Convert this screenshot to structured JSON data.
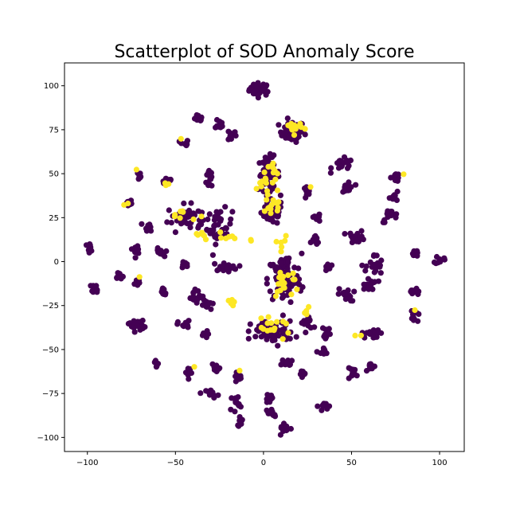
{
  "chart_data": {
    "type": "scatter",
    "title": "Scatterplot of SOD Anomaly Score",
    "xlabel": "",
    "ylabel": "",
    "xlim": [
      -113,
      114
    ],
    "ylim": [
      -108,
      113
    ],
    "xticks": [
      -100,
      -50,
      0,
      50,
      100
    ],
    "yticks": [
      -100,
      -75,
      -50,
      -25,
      0,
      25,
      50,
      75,
      100
    ],
    "xtick_labels": [
      "−100",
      "−50",
      "0",
      "50",
      "100"
    ],
    "ytick_labels": [
      "−100",
      "−75",
      "−50",
      "−25",
      "0",
      "25",
      "50",
      "75",
      "100"
    ],
    "grid": false,
    "legend": "none",
    "colors": {
      "normal": "#440154",
      "anomaly": "#fde725"
    },
    "series": [
      {
        "label_value": 0,
        "color": "#440154",
        "clusters": [
          {
            "cx": -2,
            "cy": 98,
            "sx": 5,
            "sy": 3,
            "n": 40
          },
          {
            "cx": 16,
            "cy": 74,
            "sx": 6,
            "sy": 5,
            "n": 45
          },
          {
            "cx": -37,
            "cy": 81,
            "sx": 2,
            "sy": 2,
            "n": 12
          },
          {
            "cx": -25,
            "cy": 78,
            "sx": 2,
            "sy": 2,
            "n": 10
          },
          {
            "cx": -18,
            "cy": 72,
            "sx": 2,
            "sy": 3,
            "n": 10
          },
          {
            "cx": -45,
            "cy": 67,
            "sx": 2,
            "sy": 2,
            "n": 10
          },
          {
            "cx": -71,
            "cy": 49,
            "sx": 2,
            "sy": 2,
            "n": 10
          },
          {
            "cx": -55,
            "cy": 46,
            "sx": 3,
            "sy": 2,
            "n": 12
          },
          {
            "cx": -30,
            "cy": 48,
            "sx": 2,
            "sy": 6,
            "n": 16
          },
          {
            "cx": -77,
            "cy": 33,
            "sx": 2,
            "sy": 2,
            "n": 10
          },
          {
            "cx": -65,
            "cy": 20,
            "sx": 2,
            "sy": 2,
            "n": 10
          },
          {
            "cx": -45,
            "cy": 25,
            "sx": 8,
            "sy": 6,
            "n": 40
          },
          {
            "cx": -25,
            "cy": 20,
            "sx": 6,
            "sy": 8,
            "n": 40
          },
          {
            "cx": 3,
            "cy": 50,
            "sx": 5,
            "sy": 8,
            "n": 70
          },
          {
            "cx": 5,
            "cy": 28,
            "sx": 5,
            "sy": 6,
            "n": 60
          },
          {
            "cx": 25,
            "cy": 39,
            "sx": 2,
            "sy": 3,
            "n": 10
          },
          {
            "cx": 30,
            "cy": 25,
            "sx": 2,
            "sy": 2,
            "n": 10
          },
          {
            "cx": 30,
            "cy": 12,
            "sx": 2,
            "sy": 2,
            "n": 10
          },
          {
            "cx": 45,
            "cy": 55,
            "sx": 5,
            "sy": 3,
            "n": 20
          },
          {
            "cx": 48,
            "cy": 42,
            "sx": 3,
            "sy": 4,
            "n": 14
          },
          {
            "cx": 53,
            "cy": 14,
            "sx": 4,
            "sy": 3,
            "n": 18
          },
          {
            "cx": 75,
            "cy": 48,
            "sx": 2,
            "sy": 2,
            "n": 10
          },
          {
            "cx": 75,
            "cy": 37,
            "sx": 3,
            "sy": 2,
            "n": 10
          },
          {
            "cx": 72,
            "cy": 26,
            "sx": 4,
            "sy": 3,
            "n": 14
          },
          {
            "cx": -99,
            "cy": 8,
            "sx": 2,
            "sy": 2,
            "n": 10
          },
          {
            "cx": -72,
            "cy": 7,
            "sx": 2,
            "sy": 2,
            "n": 10
          },
          {
            "cx": -59,
            "cy": 5,
            "sx": 2,
            "sy": 2,
            "n": 10
          },
          {
            "cx": -45,
            "cy": -2,
            "sx": 2,
            "sy": 2,
            "n": 10
          },
          {
            "cx": -22,
            "cy": -3,
            "sx": 6,
            "sy": 2,
            "n": 20
          },
          {
            "cx": 12,
            "cy": -10,
            "sx": 8,
            "sy": 12,
            "n": 90
          },
          {
            "cx": 37,
            "cy": -3,
            "sx": 2,
            "sy": 2,
            "n": 10
          },
          {
            "cx": 63,
            "cy": -3,
            "sx": 4,
            "sy": 6,
            "n": 22
          },
          {
            "cx": 86,
            "cy": 5,
            "sx": 2,
            "sy": 2,
            "n": 10
          },
          {
            "cx": 100,
            "cy": 1,
            "sx": 2,
            "sy": 2,
            "n": 10
          },
          {
            "cx": -95,
            "cy": -15,
            "sx": 2,
            "sy": 2,
            "n": 10
          },
          {
            "cx": -82,
            "cy": -8,
            "sx": 2,
            "sy": 2,
            "n": 10
          },
          {
            "cx": -72,
            "cy": -12,
            "sx": 2,
            "sy": 2,
            "n": 10
          },
          {
            "cx": -57,
            "cy": -17,
            "sx": 2,
            "sy": 3,
            "n": 10
          },
          {
            "cx": -40,
            "cy": -20,
            "sx": 3,
            "sy": 3,
            "n": 12
          },
          {
            "cx": -33,
            "cy": -25,
            "sx": 3,
            "sy": 5,
            "n": 12
          },
          {
            "cx": 47,
            "cy": -19,
            "sx": 4,
            "sy": 3,
            "n": 16
          },
          {
            "cx": 60,
            "cy": -13,
            "sx": 4,
            "sy": 3,
            "n": 14
          },
          {
            "cx": 86,
            "cy": -17,
            "sx": 2,
            "sy": 2,
            "n": 10
          },
          {
            "cx": -72,
            "cy": -36,
            "sx": 4,
            "sy": 3,
            "n": 18
          },
          {
            "cx": -45,
            "cy": -36,
            "sx": 3,
            "sy": 2,
            "n": 12
          },
          {
            "cx": -33,
            "cy": -42,
            "sx": 2,
            "sy": 2,
            "n": 10
          },
          {
            "cx": 5,
            "cy": -40,
            "sx": 10,
            "sy": 5,
            "n": 70
          },
          {
            "cx": 25,
            "cy": -35,
            "sx": 3,
            "sy": 4,
            "n": 14
          },
          {
            "cx": 36,
            "cy": -40,
            "sx": 2,
            "sy": 3,
            "n": 10
          },
          {
            "cx": 62,
            "cy": -41,
            "sx": 5,
            "sy": 2,
            "n": 18
          },
          {
            "cx": 85,
            "cy": -32,
            "sx": 2,
            "sy": 3,
            "n": 10
          },
          {
            "cx": 34,
            "cy": -52,
            "sx": 2,
            "sy": 3,
            "n": 10
          },
          {
            "cx": -61,
            "cy": -57,
            "sx": 2,
            "sy": 2,
            "n": 10
          },
          {
            "cx": -42,
            "cy": -63,
            "sx": 2,
            "sy": 2,
            "n": 10
          },
          {
            "cx": -27,
            "cy": -61,
            "sx": 2,
            "sy": 2,
            "n": 10
          },
          {
            "cx": -15,
            "cy": -65,
            "sx": 2,
            "sy": 2,
            "n": 10
          },
          {
            "cx": 14,
            "cy": -58,
            "sx": 3,
            "sy": 2,
            "n": 12
          },
          {
            "cx": 23,
            "cy": -64,
            "sx": 2,
            "sy": 2,
            "n": 10
          },
          {
            "cx": 51,
            "cy": -63,
            "sx": 3,
            "sy": 2,
            "n": 12
          },
          {
            "cx": 62,
            "cy": -60,
            "sx": 2,
            "sy": 2,
            "n": 10
          },
          {
            "cx": -29,
            "cy": -75,
            "sx": 3,
            "sy": 2,
            "n": 12
          },
          {
            "cx": -16,
            "cy": -80,
            "sx": 2,
            "sy": 4,
            "n": 12
          },
          {
            "cx": -13,
            "cy": -91,
            "sx": 2,
            "sy": 2,
            "n": 10
          },
          {
            "cx": 3,
            "cy": -78,
            "sx": 2,
            "sy": 2,
            "n": 10
          },
          {
            "cx": 5,
            "cy": -86,
            "sx": 3,
            "sy": 2,
            "n": 12
          },
          {
            "cx": 12,
            "cy": -95,
            "sx": 3,
            "sy": 2,
            "n": 12
          },
          {
            "cx": 35,
            "cy": -82,
            "sx": 3,
            "sy": 2,
            "n": 12
          }
        ]
      },
      {
        "label_value": 1,
        "color": "#fde725",
        "clusters": [
          {
            "cx": 17,
            "cy": 76,
            "sx": 4,
            "sy": 3,
            "n": 14
          },
          {
            "cx": 2,
            "cy": 48,
            "sx": 5,
            "sy": 9,
            "n": 20
          },
          {
            "cx": 5,
            "cy": 30,
            "sx": 4,
            "sy": 6,
            "n": 12
          },
          {
            "cx": -45,
            "cy": 27,
            "sx": 6,
            "sy": 3,
            "n": 8
          },
          {
            "cx": -35,
            "cy": 14,
            "sx": 5,
            "sy": 3,
            "n": 6
          },
          {
            "cx": -55,
            "cy": 44,
            "sx": 2,
            "sy": 1,
            "n": 4
          },
          {
            "cx": -22,
            "cy": 14,
            "sx": 4,
            "sy": 4,
            "n": 6
          },
          {
            "cx": 10,
            "cy": 10,
            "sx": 4,
            "sy": 3,
            "n": 6
          },
          {
            "cx": 12,
            "cy": -12,
            "sx": 7,
            "sy": 9,
            "n": 18
          },
          {
            "cx": -18,
            "cy": -22,
            "sx": 3,
            "sy": 2,
            "n": 5
          },
          {
            "cx": 5,
            "cy": -38,
            "sx": 9,
            "sy": 4,
            "n": 16
          },
          {
            "cx": 25,
            "cy": -28,
            "sx": 2,
            "sy": 3,
            "n": 4
          },
          {
            "cx": 55,
            "cy": -42,
            "sx": 2,
            "sy": 1,
            "n": 2
          },
          {
            "cx": -76,
            "cy": 33,
            "sx": 2,
            "sy": 2,
            "n": 2
          },
          {
            "cx": -70,
            "cy": -9,
            "sx": 1,
            "sy": 1,
            "n": 1
          },
          {
            "cx": -47,
            "cy": 70,
            "sx": 1,
            "sy": 1,
            "n": 1
          },
          {
            "cx": -71,
            "cy": 52,
            "sx": 1,
            "sy": 1,
            "n": 1
          },
          {
            "cx": 27,
            "cy": 42,
            "sx": 1,
            "sy": 1,
            "n": 1
          },
          {
            "cx": 80,
            "cy": 50,
            "sx": 1,
            "sy": 1,
            "n": 1
          },
          {
            "cx": 85,
            "cy": -29,
            "sx": 1,
            "sy": 1,
            "n": 1
          },
          {
            "cx": -40,
            "cy": -60,
            "sx": 1,
            "sy": 1,
            "n": 1
          },
          {
            "cx": -12,
            "cy": -62,
            "sx": 1,
            "sy": 1,
            "n": 1
          },
          {
            "cx": -7,
            "cy": 12,
            "sx": 1,
            "sy": 1,
            "n": 2
          }
        ]
      }
    ]
  }
}
